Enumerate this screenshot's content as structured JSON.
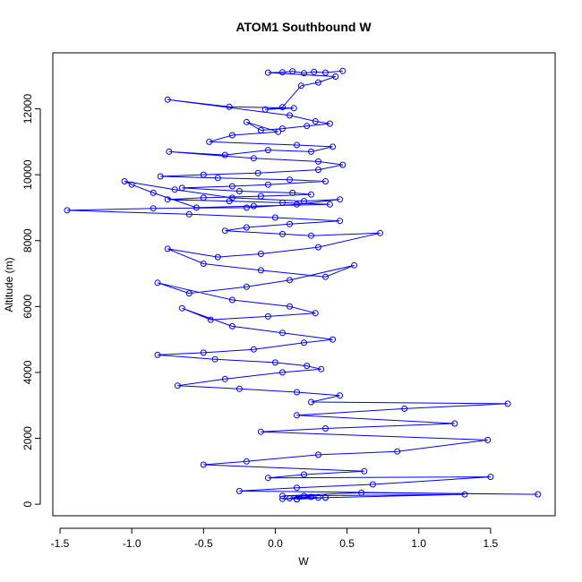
{
  "chart_data": {
    "type": "line",
    "title": "ATOM1 Southbound W",
    "xlabel": "W",
    "ylabel": "Altitude (m)",
    "xlim": [
      -1.55,
      1.95
    ],
    "ylim": [
      -350,
      13700
    ],
    "xticks": [
      -1.5,
      -1.0,
      -0.5,
      0.0,
      0.5,
      1.0,
      1.5
    ],
    "xtick_labels": [
      "-1.5",
      "-1.0",
      "-0.5",
      "0.0",
      "0.5",
      "1.0",
      "1.5"
    ],
    "yticks": [
      0,
      2000,
      4000,
      6000,
      8000,
      10000,
      12000
    ],
    "ytick_labels": [
      "0",
      "2000",
      "4000",
      "6000",
      "8000",
      "10000",
      "12000"
    ],
    "grid": false,
    "legend": "none",
    "marker": "open-circle",
    "series_color": "#0000ff",
    "series": [
      {
        "x": [
          0.47,
          0.35,
          0.27,
          0.2,
          0.12,
          0.05,
          -0.05,
          0.42,
          0.3,
          0.18,
          0.05,
          -0.07,
          0.13,
          -0.32,
          -0.75,
          0.1,
          0.28,
          0.38,
          0.22,
          0.05,
          -0.1,
          -0.2,
          0.02,
          -0.3,
          -0.46,
          0.15,
          0.4,
          0.25,
          -0.05,
          -0.35,
          -0.74,
          -0.15,
          0.3,
          0.47,
          0.3,
          -0.12,
          -0.5,
          -0.8,
          -0.4,
          0.1,
          0.35,
          -0.05,
          -0.3,
          -0.65,
          -0.25,
          0.12,
          0.25,
          -0.1,
          -0.5,
          -0.75,
          -0.32,
          0.05,
          0.38,
          -0.15,
          -0.55,
          -0.85,
          -1.0,
          -1.05,
          -0.7,
          -0.3,
          0.2,
          0.45,
          0.15,
          -0.2,
          -0.85,
          -1.45,
          -0.6,
          0.0,
          0.45,
          0.1,
          -0.2,
          -0.35,
          0.05,
          0.25,
          0.73,
          0.3,
          -0.1,
          -0.4,
          -0.75,
          -0.5,
          -0.1,
          0.35,
          0.55,
          0.1,
          -0.2,
          -0.6,
          -0.82,
          -0.3,
          0.1,
          0.28,
          -0.05,
          -0.45,
          -0.65,
          -0.3,
          0.05,
          0.4,
          0.2,
          -0.15,
          -0.5,
          -0.82,
          -0.42,
          0.0,
          0.22,
          0.32,
          0.05,
          -0.35,
          -0.68,
          -0.25,
          0.15,
          0.45,
          0.25,
          1.62,
          0.9,
          0.15,
          1.25,
          0.35,
          -0.1,
          1.48,
          0.85,
          0.3,
          -0.2,
          -0.5,
          0.62,
          0.2,
          -0.05,
          1.5,
          0.68,
          0.15,
          -0.25,
          1.83,
          0.6,
          0.05,
          1.32,
          0.35,
          0.15,
          0.3,
          0.2,
          0.1,
          0.25,
          0.05,
          0.35,
          0.15
        ],
        "y": [
          13150,
          13100,
          13120,
          13080,
          13140,
          13110,
          13100,
          12980,
          12800,
          12700,
          12050,
          11980,
          12020,
          12060,
          12280,
          11800,
          11620,
          11550,
          11480,
          11400,
          11350,
          11600,
          11300,
          11200,
          11000,
          10900,
          10850,
          10700,
          10750,
          10600,
          10700,
          10500,
          10400,
          10300,
          10150,
          10050,
          10000,
          9950,
          9900,
          9850,
          9800,
          9700,
          9650,
          9600,
          9500,
          9450,
          9400,
          9350,
          9300,
          9250,
          9200,
          9150,
          9100,
          9050,
          9000,
          9450,
          9700,
          9800,
          9550,
          9300,
          9200,
          9250,
          9100,
          9000,
          8980,
          8920,
          8800,
          8700,
          8600,
          8500,
          8400,
          8300,
          8200,
          8150,
          8230,
          7800,
          7600,
          7500,
          7750,
          7300,
          7100,
          6900,
          7250,
          6800,
          6600,
          6400,
          6720,
          6200,
          6000,
          5800,
          5700,
          5600,
          5950,
          5400,
          5200,
          5000,
          4900,
          4700,
          4600,
          4530,
          4400,
          4300,
          4200,
          4100,
          4000,
          3800,
          3600,
          3500,
          3400,
          3300,
          3100,
          3050,
          2900,
          2700,
          2450,
          2300,
          2200,
          1950,
          1600,
          1500,
          1300,
          1200,
          1000,
          900,
          800,
          830,
          600,
          500,
          400,
          300,
          350,
          250,
          300,
          200,
          150,
          200,
          250,
          180,
          220,
          160,
          200,
          150
        ]
      }
    ]
  }
}
